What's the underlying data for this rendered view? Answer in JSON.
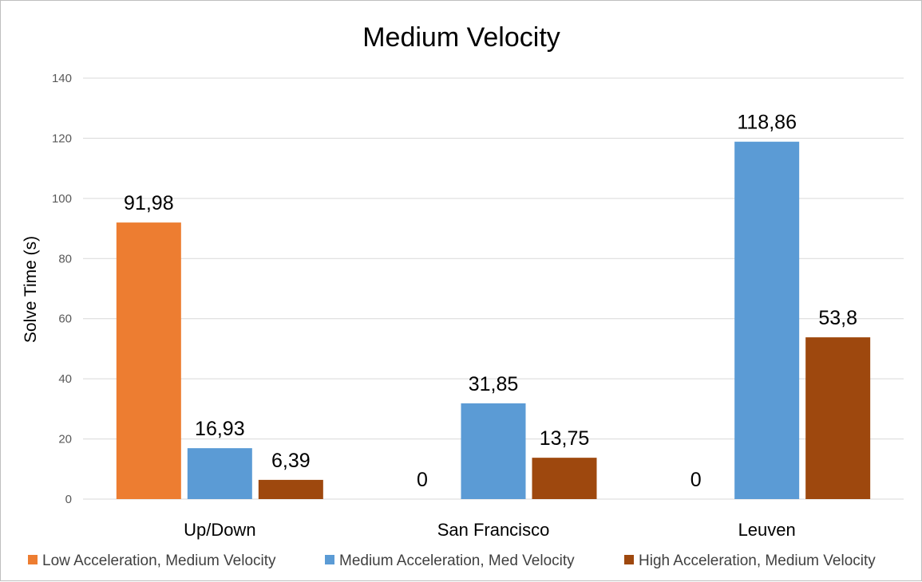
{
  "chart_data": {
    "type": "bar",
    "title": "Medium Velocity",
    "xlabel": "",
    "ylabel": "Solve Time (s)",
    "ylim": [
      0,
      140
    ],
    "yticks": [
      0,
      20,
      40,
      60,
      80,
      100,
      120,
      140
    ],
    "grid": true,
    "legend_position": "bottom",
    "categories": [
      "Up/Down",
      "San Francisco",
      "Leuven"
    ],
    "series": [
      {
        "name": "Low Acceleration, Medium Velocity",
        "color": "#ED7D31",
        "values": [
          91.98,
          0,
          0
        ],
        "labels": [
          "91,98",
          "0",
          "0"
        ]
      },
      {
        "name": "Medium Acceleration, Med Velocity",
        "color": "#5B9BD5",
        "values": [
          16.93,
          31.85,
          118.86
        ],
        "labels": [
          "16,93",
          "31,85",
          "118,86"
        ]
      },
      {
        "name": "High Acceleration, Medium Velocity",
        "color": "#9E480E",
        "values": [
          6.39,
          13.75,
          53.8
        ],
        "labels": [
          "6,39",
          "13,75",
          "53,8"
        ]
      }
    ]
  }
}
